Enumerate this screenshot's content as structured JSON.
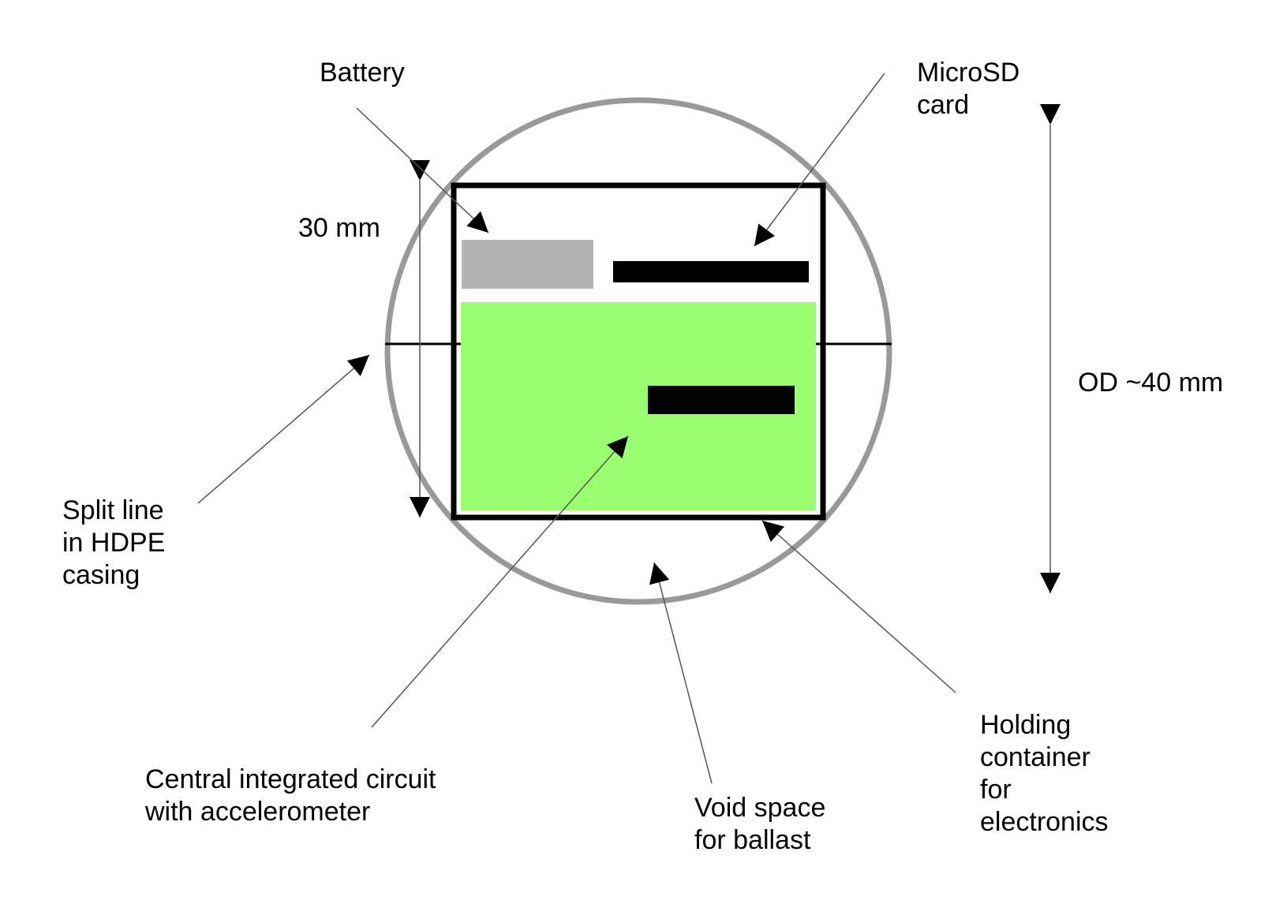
{
  "labels": {
    "battery": [
      "Battery"
    ],
    "microsd": [
      "MicroSD",
      "card"
    ],
    "inner_dim": [
      "30 mm"
    ],
    "outer_dim": [
      "OD ~40 mm"
    ],
    "split_line": [
      "Split line",
      "in HDPE",
      "casing"
    ],
    "circuit": [
      "Central integrated circuit",
      "with accelerometer"
    ],
    "void": [
      "Void space",
      "for ballast"
    ],
    "container": [
      "Holding",
      "container",
      "for",
      "electronics"
    ]
  },
  "colors": {
    "casing": "#999999",
    "container": "#000000",
    "battery": "#b3b3b3",
    "circuit_board": "#99ff6f",
    "component": "#000000",
    "leader": "#555555"
  }
}
